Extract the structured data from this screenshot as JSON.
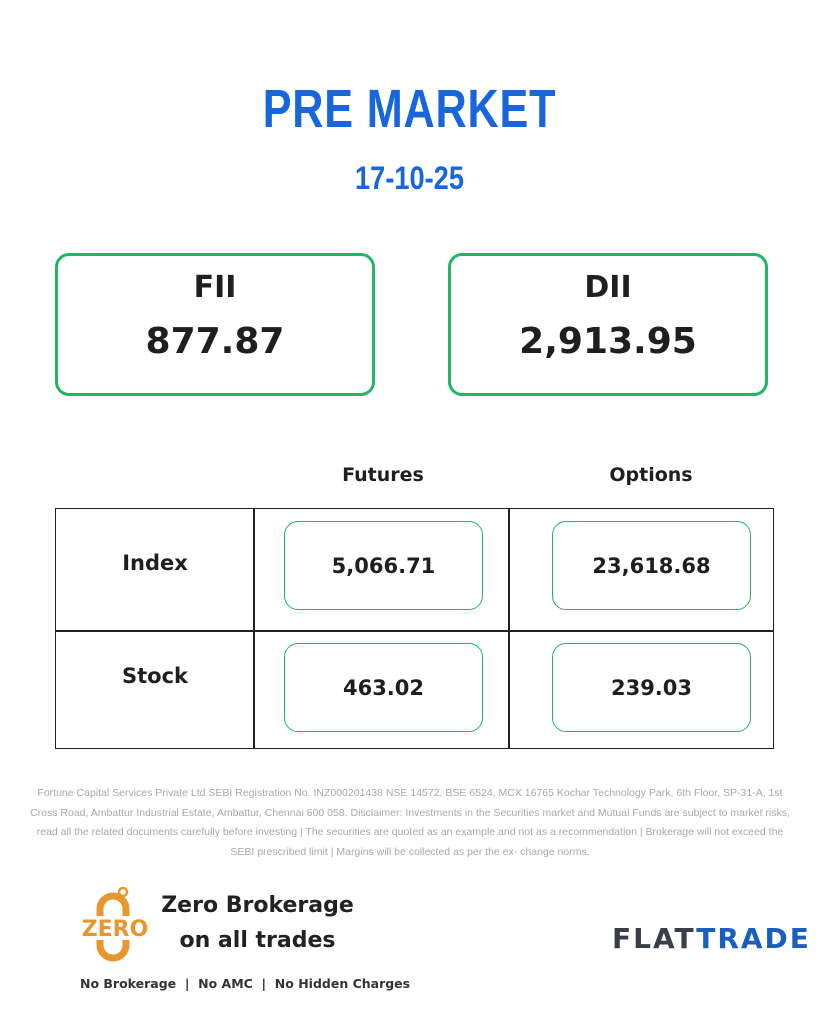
{
  "header": {
    "title": "PRE MARKET",
    "date": "17-10-25"
  },
  "cards": [
    {
      "label": "FII",
      "value": "877.87"
    },
    {
      "label": "DII",
      "value": "2,913.95"
    }
  ],
  "table": {
    "columns": [
      "Futures",
      "Options"
    ],
    "rows": [
      {
        "label": "Index",
        "futures": "5,066.71",
        "options": "23,618.68"
      },
      {
        "label": "Stock",
        "futures": "463.02",
        "options": "239.03"
      }
    ]
  },
  "disclaimer": "Fortune Capital Services Private Ltd SEBI Registration No. INZ000201438 NSE 14572, BSE 6524, MCX 16765 Kochar Technology Park, 6th Floor, SP-31-A, 1st Cross Road, Ambattur Industrial Estate, Ambattur, Chennai 600 058. Disclaimer: Investments in the Securities market and Mutual Funds are subject to market risks, read all the related documents carefully before investing | The securities are quoted as an example and not as a recommendation | Brokerage will not exceed the SEBI prescribed limit | Margins will be collected as per the ex- change norms.",
  "promo": {
    "logo_text": "ZERO",
    "line1": "Zero Brokerage",
    "line2": "on all trades",
    "tagline": "No Brokerage  |  No AMC  |  No Hidden Charges"
  },
  "brand": {
    "part1": "FLAT",
    "part2": "TRADE"
  },
  "colors": {
    "accent_blue": "#1766dc",
    "border_green": "#22b566",
    "zero_orange": "#e8962e"
  }
}
